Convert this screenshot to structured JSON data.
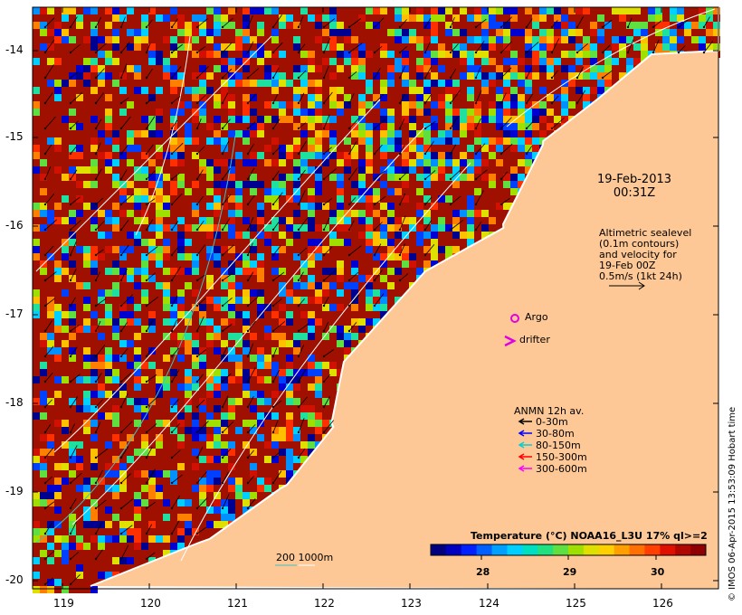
{
  "map": {
    "lon_ticks": [
      "119",
      "120",
      "121",
      "122",
      "123",
      "124",
      "125",
      "126"
    ],
    "lat_ticks": [
      "-14",
      "-15",
      "-16",
      "-17",
      "-18",
      "-19",
      "-20"
    ],
    "colors": {
      "land": "#fdc896",
      "hot": "#a01000",
      "coast": "#ffffff"
    }
  },
  "annotations": {
    "date_line1": "19-Feb-2013",
    "date_line2": "00:31Z",
    "altimetry_lines": [
      "Altimetric sealevel",
      "(0.1m contours)",
      "and velocity for",
      "19-Feb 00Z",
      "0.5m/s (1kt 24h)"
    ],
    "argo_label": "Argo",
    "drifter_label": "drifter",
    "depth_label": "200  1000m"
  },
  "legend": {
    "title": "ANMN 12h av.",
    "items": [
      {
        "label": "0-30m",
        "color": "#000000"
      },
      {
        "label": "30-80m",
        "color": "#0000ff"
      },
      {
        "label": "80-150m",
        "color": "#00d0d0"
      },
      {
        "label": "150-300m",
        "color": "#ff0000"
      },
      {
        "label": "300-600m",
        "color": "#ff00ff"
      }
    ]
  },
  "colorbar": {
    "title": "Temperature (°C) NOAA16_L3U 17% ql>=2",
    "ticks": [
      "28",
      "29",
      "30"
    ]
  },
  "credit": "© IMOS 06-Apr-2015 13:53:09 Hobart time"
}
